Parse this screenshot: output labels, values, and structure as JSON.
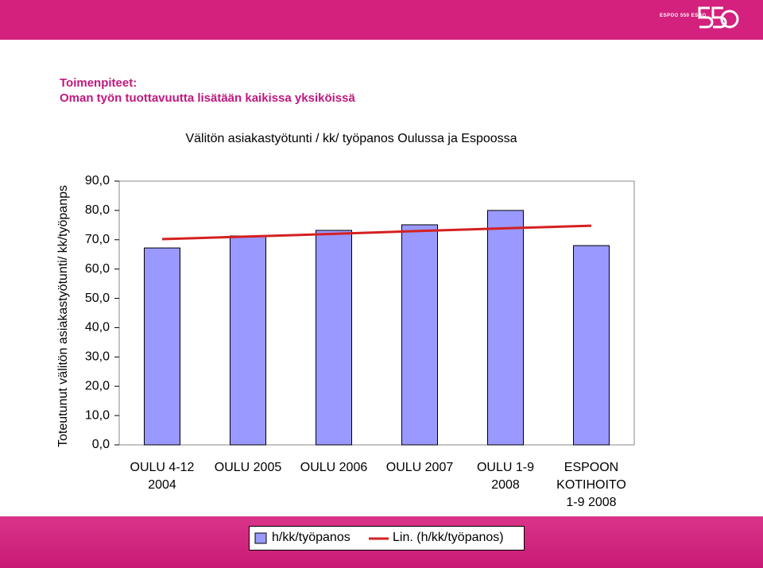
{
  "header": {
    "logo": "ESPOO 550 ESBO",
    "heading": "Toimenpiteet:",
    "subheading": "Oman työn tuottavuutta lisätään kaikissa yksiköissä"
  },
  "chart_data": {
    "type": "bar",
    "title": "Välitön asiakastyötunti / kk/ työpanos Oulussa ja Espoossa",
    "y_label": "Toteutunut välitön asiakastyötunti/ kk/työpanps",
    "categories": [
      "OULU 4-12\n2004",
      "OULU 2005",
      "OULU 2006",
      "OULU 2007",
      "OULU 1-9\n2008",
      "ESPOON\nKOTIHOITO\n1-9 2008"
    ],
    "series": [
      {
        "name": "h/kk/työpanos",
        "type": "bar",
        "color": "#9999ff",
        "values": [
          67.2,
          71.3,
          73.2,
          75.1,
          80.0,
          68.0
        ]
      },
      {
        "name": "Lin. (h/kk/työpanos)",
        "type": "line",
        "color": "#d42020",
        "values": [
          70.2,
          71.1,
          72.0,
          73.0,
          73.9,
          74.8
        ]
      }
    ],
    "ylim": [
      0,
      90
    ],
    "yticks": [
      {
        "value": 0,
        "label": "0,0"
      },
      {
        "value": 10,
        "label": "10,0"
      },
      {
        "value": 20,
        "label": "20,0"
      },
      {
        "value": 30,
        "label": "30,0"
      },
      {
        "value": 40,
        "label": "40,0"
      },
      {
        "value": 50,
        "label": "50,0"
      },
      {
        "value": 60,
        "label": "60,0"
      },
      {
        "value": 70,
        "label": "70,0"
      },
      {
        "value": 80,
        "label": "80,0"
      },
      {
        "value": 90,
        "label": "90,0"
      }
    ],
    "grid": false,
    "legend": "bottom"
  }
}
